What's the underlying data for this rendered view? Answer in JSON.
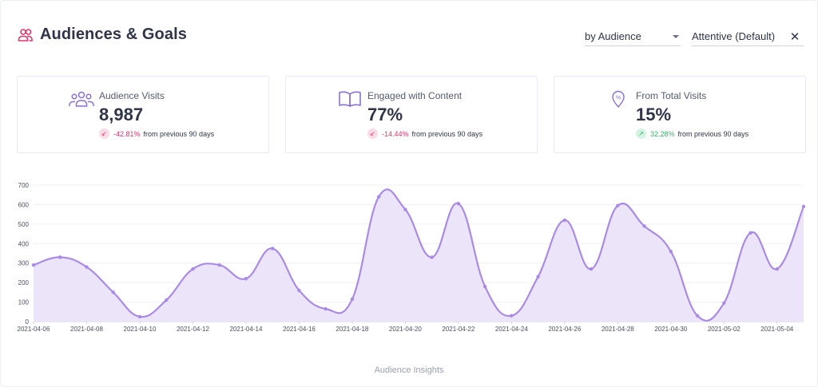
{
  "header": {
    "title": "Audiences & Goals",
    "audience_select": "by Audience",
    "segment_select": "Attentive (Default)"
  },
  "cards": [
    {
      "label": "Audience Visits",
      "value": "8,987",
      "trend_pct": "-42.81%",
      "trend_text": "from previous 90 days",
      "trend_dir": "down",
      "icon": "users-group-icon"
    },
    {
      "label": "Engaged with Content",
      "value": "77%",
      "trend_pct": "-14.44%",
      "trend_text": "from previous 90 days",
      "trend_dir": "down",
      "icon": "open-book-icon"
    },
    {
      "label": "From Total Visits",
      "value": "15%",
      "trend_pct": "32.28%",
      "trend_text": "from previous 90 days",
      "trend_dir": "up",
      "icon": "percent-pin-icon"
    }
  ],
  "colors": {
    "accent": "#a98be6",
    "fill": "#ece5fa",
    "negative": "#e0356b",
    "positive": "#2fb36b",
    "header_icon": "#e0356b"
  },
  "chart_data": {
    "type": "area",
    "title": "",
    "xlabel": "Audience Insights",
    "ylabel": "",
    "ylim": [
      0,
      700
    ],
    "yticks": [
      0,
      100,
      200,
      300,
      400,
      500,
      600,
      700
    ],
    "x_tick_labels": [
      "2021-04-06",
      "2021-04-08",
      "2021-04-10",
      "2021-04-12",
      "2021-04-14",
      "2021-04-16",
      "2021-04-18",
      "2021-04-20",
      "2021-04-22",
      "2021-04-24",
      "2021-04-26",
      "2021-04-28",
      "2021-04-30",
      "2021-05-02",
      "2021-05-04"
    ],
    "x": [
      "2021-04-06",
      "2021-04-07",
      "2021-04-08",
      "2021-04-09",
      "2021-04-10",
      "2021-04-11",
      "2021-04-12",
      "2021-04-13",
      "2021-04-14",
      "2021-04-15",
      "2021-04-16",
      "2021-04-17",
      "2021-04-18",
      "2021-04-19",
      "2021-04-20",
      "2021-04-21",
      "2021-04-22",
      "2021-04-23",
      "2021-04-24",
      "2021-04-25",
      "2021-04-26",
      "2021-04-27",
      "2021-04-28",
      "2021-04-29",
      "2021-04-30",
      "2021-05-01",
      "2021-05-02",
      "2021-05-03",
      "2021-05-04",
      "2021-05-05"
    ],
    "series": [
      {
        "name": "Audience Visits",
        "values": [
          290,
          330,
          280,
          150,
          25,
          110,
          270,
          290,
          220,
          375,
          160,
          65,
          115,
          640,
          575,
          330,
          605,
          180,
          30,
          230,
          520,
          270,
          595,
          490,
          360,
          30,
          95,
          455,
          270,
          590
        ]
      }
    ]
  },
  "footer": {
    "label": "Audience Insights"
  }
}
